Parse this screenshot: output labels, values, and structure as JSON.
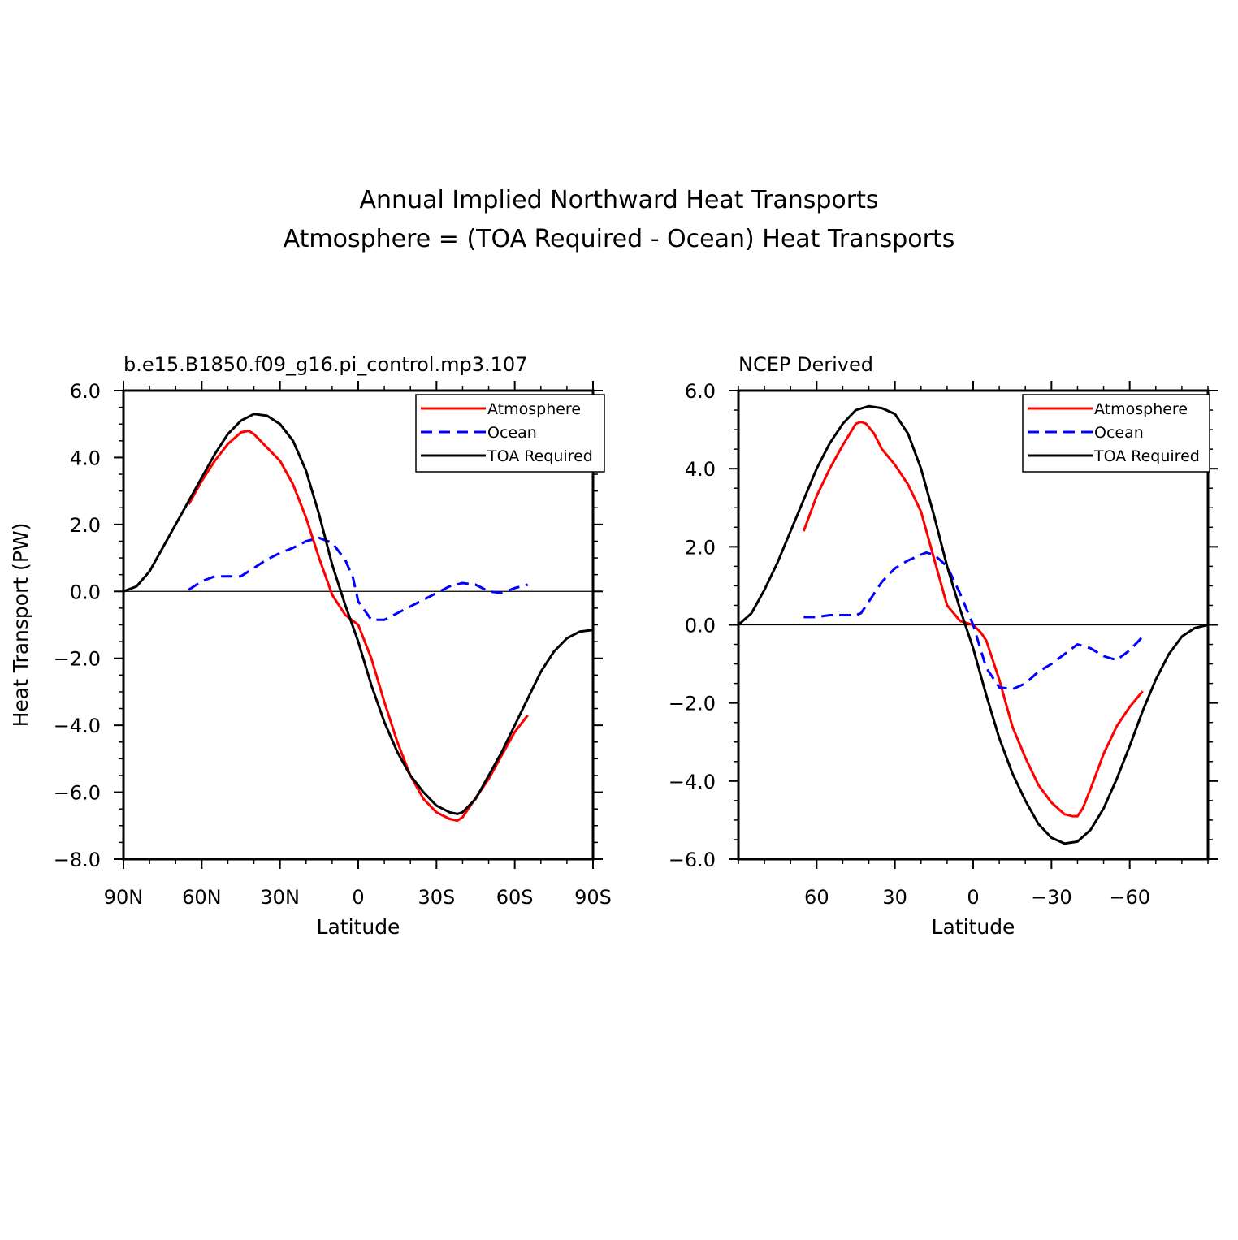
{
  "title_line1": "Annual Implied Northward Heat Transports",
  "title_line2": "Atmosphere = (TOA Required - Ocean) Heat Transports",
  "colors": {
    "atmosphere": "#ff0000",
    "ocean": "#0000ff",
    "toa": "#000000"
  },
  "chart_data": [
    {
      "type": "line",
      "subtitle": "b.e15.B1850.f09_g16.pi_control.mp3.107",
      "xlabel": "Latitude",
      "ylabel": "Heat Transport (PW)",
      "xlim": [
        90,
        -90
      ],
      "ylim": [
        -8,
        6
      ],
      "xticks": [
        90,
        60,
        30,
        0,
        -30,
        -60,
        -90
      ],
      "xticklabels": [
        "90N",
        "60N",
        "30N",
        "0",
        "30S",
        "60S",
        "90S"
      ],
      "yticks": [
        6,
        4,
        2,
        0,
        -2,
        -4,
        -6,
        -8
      ],
      "yticklabels": [
        "6.0",
        "4.0",
        "2.0",
        "0.0",
        "−2.0",
        "−4.0",
        "−6.0",
        "−8.0"
      ],
      "grid": false,
      "legend_position": "top-right",
      "zero_line": true,
      "series": [
        {
          "name": "Atmosphere",
          "key": "atmosphere",
          "style": "solid",
          "x": [
            65,
            60,
            55,
            50,
            45,
            42,
            40,
            35,
            30,
            25,
            20,
            15,
            10,
            5,
            0,
            -5,
            -10,
            -15,
            -20,
            -25,
            -30,
            -35,
            -38,
            -40,
            -43,
            -50,
            -55,
            -60,
            -65
          ],
          "y": [
            2.6,
            3.3,
            3.9,
            4.4,
            4.75,
            4.8,
            4.7,
            4.3,
            3.9,
            3.2,
            2.2,
            1.0,
            -0.1,
            -0.7,
            -1.0,
            -2.0,
            -3.3,
            -4.5,
            -5.5,
            -6.2,
            -6.6,
            -6.8,
            -6.85,
            -6.75,
            -6.4,
            -5.6,
            -4.9,
            -4.2,
            -3.7
          ]
        },
        {
          "name": "Ocean",
          "key": "ocean",
          "style": "dashed",
          "x": [
            65,
            60,
            55,
            50,
            45,
            40,
            35,
            30,
            25,
            20,
            15,
            10,
            5,
            2,
            0,
            -5,
            -10,
            -15,
            -20,
            -25,
            -30,
            -35,
            -40,
            -45,
            -50,
            -55,
            -60,
            -65
          ],
          "y": [
            0.05,
            0.3,
            0.45,
            0.45,
            0.45,
            0.7,
            0.95,
            1.15,
            1.3,
            1.5,
            1.6,
            1.45,
            0.95,
            0.4,
            -0.3,
            -0.85,
            -0.85,
            -0.65,
            -0.45,
            -0.25,
            -0.05,
            0.15,
            0.25,
            0.2,
            0.0,
            -0.05,
            0.1,
            0.2
          ]
        },
        {
          "name": "TOA Required",
          "key": "toa",
          "style": "solid",
          "x": [
            90,
            85,
            80,
            75,
            70,
            65,
            60,
            55,
            50,
            45,
            40,
            35,
            30,
            25,
            20,
            15,
            10,
            5,
            0,
            -5,
            -10,
            -15,
            -20,
            -25,
            -30,
            -35,
            -38,
            -40,
            -45,
            -50,
            -55,
            -60,
            -65,
            -70,
            -75,
            -80,
            -85,
            -90
          ],
          "y": [
            0.0,
            0.15,
            0.6,
            1.3,
            2.0,
            2.7,
            3.4,
            4.1,
            4.7,
            5.1,
            5.3,
            5.25,
            5.0,
            4.5,
            3.6,
            2.3,
            0.8,
            -0.4,
            -1.5,
            -2.8,
            -3.9,
            -4.8,
            -5.5,
            -6.0,
            -6.4,
            -6.6,
            -6.65,
            -6.6,
            -6.2,
            -5.5,
            -4.8,
            -4.0,
            -3.2,
            -2.4,
            -1.8,
            -1.4,
            -1.2,
            -1.15
          ]
        }
      ]
    },
    {
      "type": "line",
      "subtitle": "NCEP Derived",
      "xlabel": "Latitude",
      "ylabel": "",
      "xlim": [
        90,
        -90
      ],
      "ylim": [
        -6,
        6
      ],
      "xticks": [
        60,
        30,
        0,
        -30,
        -60
      ],
      "xticklabels": [
        "60",
        "30",
        "0",
        "−30",
        "−60"
      ],
      "yticks": [
        6,
        4,
        2,
        0,
        -2,
        -4,
        -6
      ],
      "yticklabels": [
        "6.0",
        "4.0",
        "2.0",
        "0.0",
        "−2.0",
        "−4.0",
        "−6.0"
      ],
      "grid": false,
      "legend_position": "top-right",
      "zero_line": true,
      "series": [
        {
          "name": "Atmosphere",
          "key": "atmosphere",
          "style": "solid",
          "x": [
            65,
            60,
            55,
            50,
            45,
            43,
            41,
            38,
            35,
            30,
            25,
            20,
            15,
            10,
            5,
            0,
            -3,
            -5,
            -10,
            -15,
            -20,
            -25,
            -30,
            -35,
            -38,
            -40,
            -42,
            -45,
            -50,
            -55,
            -60,
            -65
          ],
          "y": [
            2.4,
            3.3,
            4.0,
            4.6,
            5.15,
            5.2,
            5.15,
            4.9,
            4.5,
            4.1,
            3.6,
            2.9,
            1.7,
            0.5,
            0.1,
            0.0,
            -0.2,
            -0.4,
            -1.4,
            -2.6,
            -3.4,
            -4.1,
            -4.55,
            -4.85,
            -4.9,
            -4.9,
            -4.7,
            -4.2,
            -3.3,
            -2.6,
            -2.1,
            -1.7
          ]
        },
        {
          "name": "Ocean",
          "key": "ocean",
          "style": "dashed",
          "x": [
            65,
            60,
            55,
            50,
            45,
            43,
            40,
            35,
            30,
            25,
            20,
            18,
            15,
            10,
            5,
            0,
            -5,
            -10,
            -15,
            -20,
            -25,
            -30,
            -35,
            -40,
            -45,
            -50,
            -55,
            -60,
            -65
          ],
          "y": [
            0.2,
            0.2,
            0.25,
            0.25,
            0.25,
            0.3,
            0.6,
            1.1,
            1.45,
            1.65,
            1.8,
            1.85,
            1.8,
            1.5,
            0.8,
            0.0,
            -1.1,
            -1.6,
            -1.65,
            -1.5,
            -1.2,
            -1.0,
            -0.75,
            -0.5,
            -0.6,
            -0.8,
            -0.9,
            -0.65,
            -0.3
          ]
        },
        {
          "name": "TOA Required",
          "key": "toa",
          "style": "solid",
          "x": [
            90,
            85,
            80,
            75,
            70,
            65,
            60,
            55,
            50,
            45,
            40,
            35,
            30,
            25,
            20,
            15,
            10,
            5,
            0,
            -5,
            -10,
            -15,
            -20,
            -25,
            -30,
            -35,
            -40,
            -45,
            -50,
            -55,
            -60,
            -65,
            -70,
            -75,
            -80,
            -85,
            -90
          ],
          "y": [
            0.0,
            0.3,
            0.9,
            1.6,
            2.4,
            3.2,
            4.0,
            4.65,
            5.15,
            5.5,
            5.6,
            5.55,
            5.4,
            4.9,
            4.0,
            2.8,
            1.5,
            0.4,
            -0.6,
            -1.8,
            -2.9,
            -3.8,
            -4.5,
            -5.1,
            -5.45,
            -5.6,
            -5.55,
            -5.25,
            -4.7,
            -3.95,
            -3.1,
            -2.2,
            -1.4,
            -0.75,
            -0.3,
            -0.08,
            0.0
          ]
        }
      ]
    }
  ]
}
